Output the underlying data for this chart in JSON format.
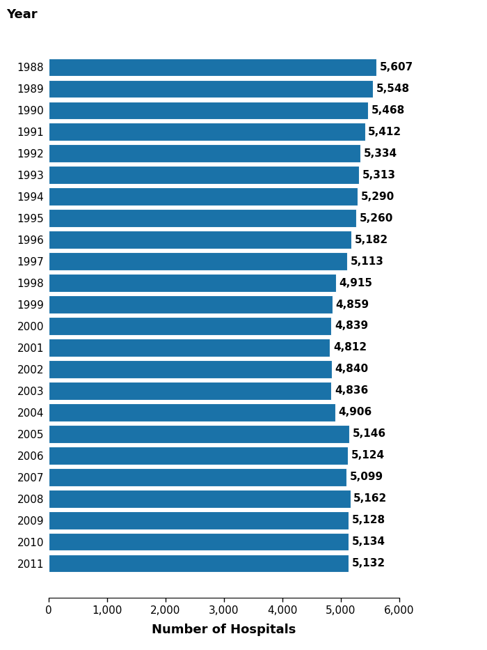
{
  "years": [
    "1988",
    "1989",
    "1990",
    "1991",
    "1992",
    "1993",
    "1994",
    "1995",
    "1996",
    "1997",
    "1998",
    "1999",
    "2000",
    "2001",
    "2002",
    "2003",
    "2004",
    "2005",
    "2006",
    "2007",
    "2008",
    "2009",
    "2010",
    "2011"
  ],
  "values": [
    5607,
    5548,
    5468,
    5412,
    5334,
    5313,
    5290,
    5260,
    5182,
    5113,
    4915,
    4859,
    4839,
    4812,
    4840,
    4836,
    4906,
    5146,
    5124,
    5099,
    5162,
    5128,
    5134,
    5132
  ],
  "bar_color": "#1a72a8",
  "background_color": "#ffffff",
  "year_label": "Year",
  "xlabel": "Number of Hospitals",
  "xlim": [
    0,
    6000
  ],
  "xticks": [
    0,
    1000,
    2000,
    3000,
    4000,
    5000,
    6000
  ],
  "xtick_labels": [
    "0",
    "1,000",
    "2,000",
    "3,000",
    "4,000",
    "5,000",
    "6,000"
  ],
  "year_label_fontsize": 13,
  "xlabel_fontsize": 13,
  "ytick_fontsize": 11,
  "xtick_fontsize": 11,
  "value_fontsize": 11
}
